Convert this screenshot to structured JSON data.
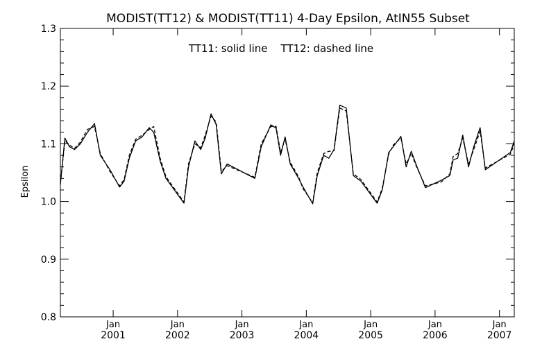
{
  "chart_data": {
    "type": "line",
    "title": "MODIST(TT12) & MODIST(TT11) 4-Day Epsilon, AtIN55 Subset",
    "annotation": "TT11: solid line    TT12: dashed line",
    "ylabel": "Epsilon",
    "xlabel": "",
    "xlim": [
      2000.18,
      2007.23
    ],
    "ylim": [
      0.8,
      1.3
    ],
    "yticks": [
      "0.8",
      "0.9",
      "1.0",
      "1.1",
      "1.2",
      "1.3"
    ],
    "yticks_values": [
      0.8,
      0.9,
      1.0,
      1.1,
      1.2,
      1.3
    ],
    "xticks": [
      {
        "x": 2001.0,
        "month": "Jan",
        "year": "2001"
      },
      {
        "x": 2002.0,
        "month": "Jan",
        "year": "2002"
      },
      {
        "x": 2003.0,
        "month": "Jan",
        "year": "2003"
      },
      {
        "x": 2004.0,
        "month": "Jan",
        "year": "2004"
      },
      {
        "x": 2005.0,
        "month": "Jan",
        "year": "2005"
      },
      {
        "x": 2006.0,
        "month": "Jan",
        "year": "2006"
      },
      {
        "x": 2007.0,
        "month": "Jan",
        "year": "2007"
      }
    ],
    "grid": false,
    "legend": "none",
    "series": [
      {
        "style": "solid",
        "x": [
          2000.18,
          2000.25,
          2000.32,
          2000.4,
          2000.49,
          2000.6,
          2000.71,
          2000.8,
          2000.95,
          2001.1,
          2001.17,
          2001.25,
          2001.35,
          2001.45,
          2001.56,
          2001.63,
          2001.73,
          2001.82,
          2002.1,
          2002.17,
          2002.27,
          2002.36,
          2002.43,
          2002.52,
          2002.6,
          2002.68,
          2002.77,
          2003.2,
          2003.3,
          2003.45,
          2003.53,
          2003.6,
          2003.67,
          2003.75,
          2003.88,
          2003.95,
          2004.1,
          2004.17,
          2004.27,
          2004.35,
          2004.43,
          2004.52,
          2004.62,
          2004.73,
          2004.85,
          2005.1,
          2005.18,
          2005.28,
          2005.35,
          2005.47,
          2005.55,
          2005.63,
          2005.72,
          2005.85,
          2006.1,
          2006.23,
          2006.28,
          2006.35,
          2006.43,
          2006.52,
          2006.6,
          2006.7,
          2006.78,
          2007.17,
          2007.23
        ],
        "y": [
          1.03,
          1.11,
          1.095,
          1.09,
          1.1,
          1.12,
          1.135,
          1.08,
          1.055,
          1.025,
          1.035,
          1.075,
          1.105,
          1.112,
          1.128,
          1.12,
          1.07,
          1.04,
          0.997,
          1.06,
          1.105,
          1.09,
          1.11,
          1.152,
          1.133,
          1.048,
          1.065,
          1.04,
          1.095,
          1.133,
          1.127,
          1.08,
          1.112,
          1.065,
          1.04,
          1.025,
          0.996,
          1.045,
          1.08,
          1.075,
          1.09,
          1.167,
          1.162,
          1.045,
          1.035,
          0.997,
          1.02,
          1.085,
          1.095,
          1.113,
          1.06,
          1.087,
          1.06,
          1.024,
          1.037,
          1.045,
          1.072,
          1.075,
          1.115,
          1.06,
          1.095,
          1.128,
          1.055,
          1.085,
          1.105
        ]
      },
      {
        "style": "dashed",
        "x": [
          2000.18,
          2000.25,
          2000.32,
          2000.4,
          2000.49,
          2000.6,
          2000.71,
          2000.8,
          2000.95,
          2001.1,
          2001.17,
          2001.25,
          2001.35,
          2001.45,
          2001.56,
          2001.63,
          2001.73,
          2001.82,
          2002.1,
          2002.17,
          2002.27,
          2002.36,
          2002.43,
          2002.52,
          2002.6,
          2002.68,
          2002.77,
          2003.2,
          2003.3,
          2003.45,
          2003.53,
          2003.6,
          2003.67,
          2003.75,
          2003.88,
          2003.95,
          2004.1,
          2004.17,
          2004.27,
          2004.35,
          2004.43,
          2004.52,
          2004.62,
          2004.73,
          2004.85,
          2005.1,
          2005.18,
          2005.28,
          2005.35,
          2005.47,
          2005.55,
          2005.63,
          2005.72,
          2005.85,
          2006.1,
          2006.23,
          2006.28,
          2006.35,
          2006.43,
          2006.52,
          2006.6,
          2006.7,
          2006.78,
          2007.17,
          2007.23
        ],
        "y": [
          1.03,
          1.105,
          1.098,
          1.092,
          1.103,
          1.125,
          1.13,
          1.083,
          1.052,
          1.027,
          1.038,
          1.08,
          1.108,
          1.115,
          1.125,
          1.13,
          1.075,
          1.043,
          0.999,
          1.065,
          1.1,
          1.093,
          1.115,
          1.148,
          1.138,
          1.052,
          1.062,
          1.042,
          1.1,
          1.13,
          1.13,
          1.085,
          1.108,
          1.068,
          1.043,
          1.022,
          0.998,
          1.05,
          1.083,
          1.087,
          1.088,
          1.162,
          1.157,
          1.048,
          1.038,
          0.999,
          1.023,
          1.082,
          1.098,
          1.11,
          1.065,
          1.083,
          1.058,
          1.027,
          1.034,
          1.048,
          1.078,
          1.083,
          1.11,
          1.065,
          1.09,
          1.122,
          1.058,
          1.082,
          1.1
        ]
      }
    ]
  }
}
